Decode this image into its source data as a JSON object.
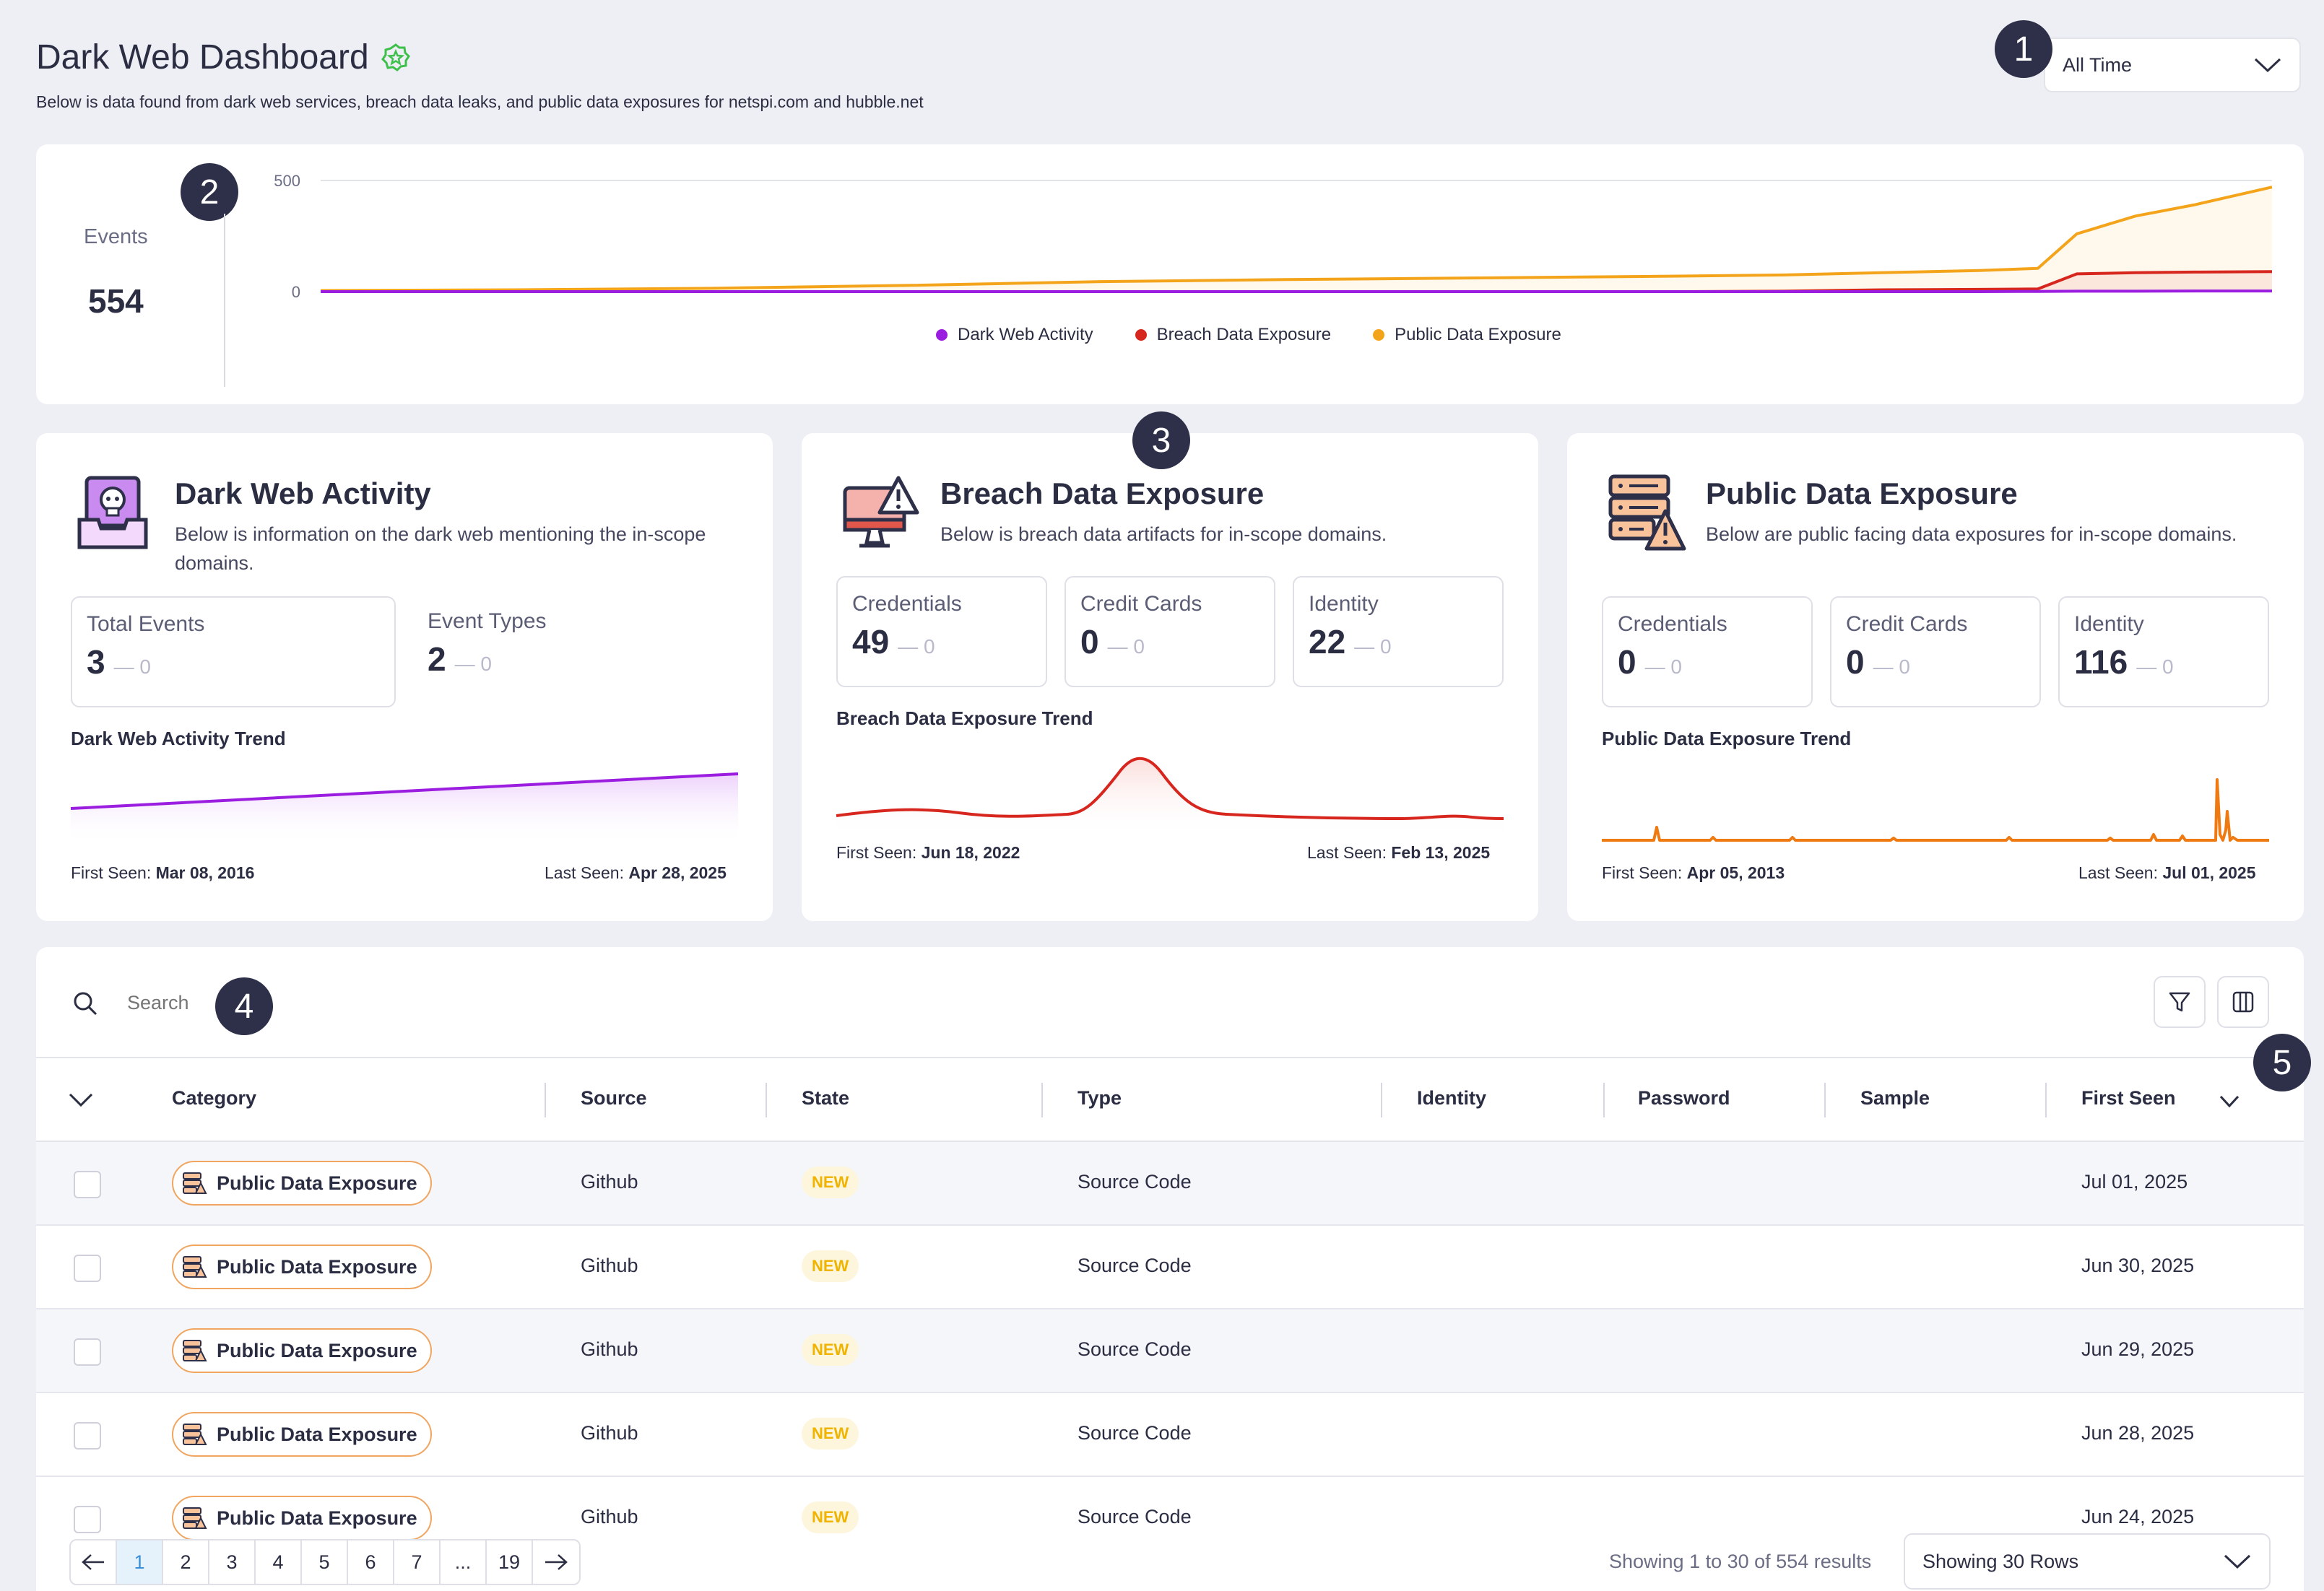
{
  "header": {
    "title": "Dark Web Dashboard",
    "subtitle": "Below is data found from dark web services, breach data leaks, and public data exposures for netspi.com and hubble.net",
    "time_range": "All Time"
  },
  "markers": [
    "1",
    "2",
    "3",
    "4",
    "5"
  ],
  "events_card": {
    "label": "Events",
    "total": "554"
  },
  "chart_data": {
    "type": "line",
    "title": "",
    "xlabel": "",
    "ylabel": "",
    "ylim": [
      0,
      500
    ],
    "yticks": [
      "500",
      "0"
    ],
    "legend_position": "bottom",
    "x": [
      0,
      0.1,
      0.2,
      0.3,
      0.4,
      0.5,
      0.6,
      0.7,
      0.75,
      0.8,
      0.85,
      0.88,
      0.9,
      0.93,
      0.96,
      1.0
    ],
    "series": [
      {
        "name": "Dark Web Activity",
        "color": "#9b1de0",
        "values": [
          0,
          0,
          0,
          0,
          0,
          0,
          0,
          0,
          0,
          0,
          0,
          1,
          2,
          2,
          3,
          3
        ]
      },
      {
        "name": "Breach Data Exposure",
        "color": "#d7261e",
        "values": [
          0,
          0,
          0,
          0,
          0,
          0,
          0,
          0,
          2,
          8,
          10,
          12,
          80,
          85,
          88,
          90
        ]
      },
      {
        "name": "Public Data Exposure",
        "color": "#f3a41b",
        "values": [
          5,
          8,
          15,
          28,
          45,
          55,
          62,
          70,
          75,
          85,
          95,
          105,
          260,
          340,
          390,
          470
        ]
      }
    ]
  },
  "summary_cards": {
    "dark_web": {
      "title": "Dark Web Activity",
      "description": "Below is information on the dark web mentioning the in-scope domains.",
      "stats": [
        {
          "label": "Total Events",
          "value": "3",
          "delta": "— 0"
        },
        {
          "label": "Event Types",
          "value": "2",
          "delta": "— 0"
        }
      ],
      "trend_title": "Dark Web Activity Trend",
      "first_seen_label": "First Seen:",
      "first_seen": "Mar 08, 2016",
      "last_seen_label": "Last Seen:",
      "last_seen": "Apr 28, 2025",
      "color": "#9b1de0"
    },
    "breach": {
      "title": "Breach Data Exposure",
      "description": "Below is breach data artifacts for in-scope domains.",
      "stats": [
        {
          "label": "Credentials",
          "value": "49",
          "delta": "— 0"
        },
        {
          "label": "Credit Cards",
          "value": "0",
          "delta": "— 0"
        },
        {
          "label": "Identity",
          "value": "22",
          "delta": "— 0"
        }
      ],
      "trend_title": "Breach Data Exposure Trend",
      "first_seen_label": "First Seen:",
      "first_seen": "Jun 18, 2022",
      "last_seen_label": "Last Seen:",
      "last_seen": "Feb 13, 2025",
      "color": "#d7261e"
    },
    "public": {
      "title": "Public Data Exposure",
      "description": "Below are public facing data exposures for in-scope domains.",
      "stats": [
        {
          "label": "Credentials",
          "value": "0",
          "delta": "— 0"
        },
        {
          "label": "Credit Cards",
          "value": "0",
          "delta": "— 0"
        },
        {
          "label": "Identity",
          "value": "116",
          "delta": "— 0"
        }
      ],
      "trend_title": "Public Data Exposure Trend",
      "first_seen_label": "First Seen:",
      "first_seen": "Apr 05, 2013",
      "last_seen_label": "Last Seen:",
      "last_seen": "Jul 01, 2025",
      "color": "#f07a12"
    }
  },
  "table": {
    "search_placeholder": "Search",
    "columns": [
      "Category",
      "Source",
      "State",
      "Type",
      "Identity",
      "Password",
      "Sample",
      "First Seen"
    ],
    "rows": [
      {
        "category": "Public Data Exposure",
        "source": "Github",
        "state": "NEW",
        "type": "Source Code",
        "first_seen": "Jul 01, 2025"
      },
      {
        "category": "Public Data Exposure",
        "source": "Github",
        "state": "NEW",
        "type": "Source Code",
        "first_seen": "Jun 30, 2025"
      },
      {
        "category": "Public Data Exposure",
        "source": "Github",
        "state": "NEW",
        "type": "Source Code",
        "first_seen": "Jun 29, 2025"
      },
      {
        "category": "Public Data Exposure",
        "source": "Github",
        "state": "NEW",
        "type": "Source Code",
        "first_seen": "Jun 28, 2025"
      },
      {
        "category": "Public Data Exposure",
        "source": "Github",
        "state": "NEW",
        "type": "Source Code",
        "first_seen": "Jun 24, 2025"
      }
    ]
  },
  "pagination": {
    "pages": [
      "1",
      "2",
      "3",
      "4",
      "5",
      "6",
      "7",
      "...",
      "19"
    ],
    "current": "1",
    "results_text": "Showing 1 to 30 of 554 results",
    "rows_select": "Showing 30 Rows"
  }
}
